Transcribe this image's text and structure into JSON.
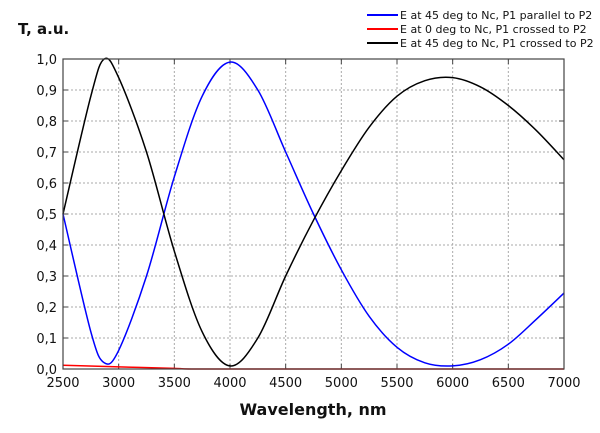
{
  "chart_data": {
    "type": "line",
    "title": "",
    "xlabel": "Wavelength, nm",
    "ylabel": "T, a.u.",
    "xlim": [
      2500,
      7000
    ],
    "ylim": [
      0,
      1
    ],
    "grid": true,
    "legend_position": "top-right",
    "x_ticks": [
      "2500",
      "3000",
      "3500",
      "4000",
      "4500",
      "5000",
      "5500",
      "6000",
      "6500",
      "7000"
    ],
    "y_ticks": [
      "0,0",
      "0,1",
      "0,2",
      "0,3",
      "0,4",
      "0,5",
      "0,6",
      "0,7",
      "0,8",
      "0,9",
      "1,0"
    ],
    "series": [
      {
        "name": "E at 45 deg to Nc, P1 parallel to P2",
        "color": "#0000ff",
        "x": [
          2500,
          2750,
          2870,
          3000,
          3250,
          3500,
          3750,
          4000,
          4250,
          4500,
          4750,
          5000,
          5250,
          5500,
          5750,
          6000,
          6250,
          6500,
          6750,
          7000
        ],
        "y": [
          0.5,
          0.12,
          0.02,
          0.06,
          0.3,
          0.62,
          0.88,
          0.99,
          0.9,
          0.7,
          0.5,
          0.32,
          0.17,
          0.07,
          0.02,
          0.01,
          0.03,
          0.08,
          0.16,
          0.245
        ]
      },
      {
        "name": "E at 0 deg to Nc, P1 crossed to P2",
        "color": "#ff0000",
        "x": [
          2500,
          3000,
          3500,
          3750,
          5000,
          7000
        ],
        "y": [
          0.012,
          0.007,
          0.002,
          0.0,
          0.0,
          0.0
        ]
      },
      {
        "name": "E at 45 deg to Nc, P1 crossed to P2",
        "color": "#000000",
        "x": [
          2500,
          2750,
          2870,
          3000,
          3250,
          3500,
          3750,
          4000,
          4250,
          4500,
          4750,
          5000,
          5250,
          5500,
          5750,
          6000,
          6250,
          6500,
          6750,
          7000
        ],
        "y": [
          0.5,
          0.88,
          1.0,
          0.94,
          0.7,
          0.38,
          0.12,
          0.01,
          0.1,
          0.3,
          0.48,
          0.64,
          0.78,
          0.88,
          0.93,
          0.94,
          0.91,
          0.85,
          0.77,
          0.675
        ]
      }
    ]
  }
}
